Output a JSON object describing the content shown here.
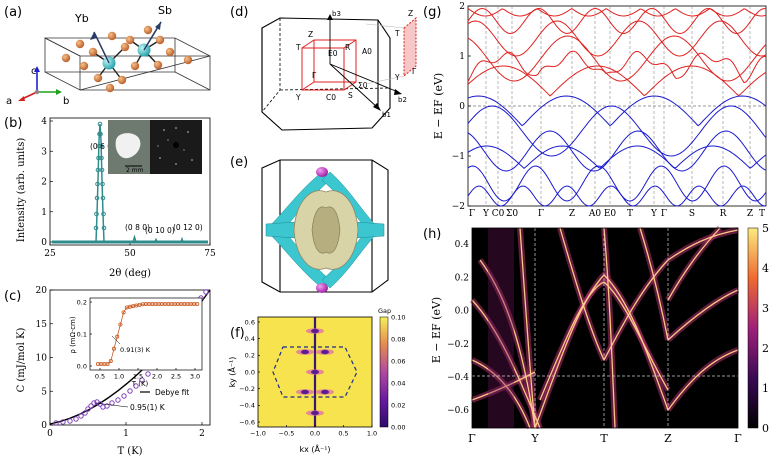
{
  "panels": {
    "a": {
      "label": "(a)",
      "atoms": [
        "Yb",
        "Sb"
      ],
      "axes": [
        "c",
        "a",
        "b"
      ]
    },
    "b": {
      "label": "(b)",
      "ylabel": "Intensity (arb. units)",
      "xlabel": "2θ (deg)",
      "yticks": [
        "0",
        "1",
        "2",
        "3",
        "4"
      ],
      "xticks": [
        "25",
        "50",
        "75"
      ],
      "peaks": [
        "(0 6 0)",
        "(0 8 0)",
        "(0 10 0)",
        "(0 12 0)"
      ],
      "scale_text": "2 mm"
    },
    "c": {
      "label": "(c)",
      "ylabel": "C (mJ/mol K)",
      "xlabel": "T (K)",
      "yticks": [
        "0",
        "5",
        "10",
        "15",
        "20"
      ],
      "xticks": [
        "0",
        "1",
        "2"
      ],
      "legend": "Debye fit",
      "tc_label": "0.95(1) K",
      "inset": {
        "ylabel": "ρ (mΩ·cm)",
        "xlabel": "T (K)",
        "yticks": [
          "0.0",
          "0.1",
          "0.2"
        ],
        "xticks": [
          "0.5",
          "1.0",
          "1.5",
          "2.0",
          "2.5",
          "3.0"
        ],
        "tc_label": "0.91(3) K"
      }
    },
    "d": {
      "label": "(d)",
      "points": [
        "Z",
        "T",
        "R",
        "A0",
        "E0",
        "Γ",
        "Y",
        "C0",
        "S",
        "Σ0"
      ],
      "axes": [
        "b3",
        "b2",
        "b1"
      ],
      "plane_points": [
        "Z",
        "T",
        "Y",
        "Γ"
      ]
    },
    "e": {
      "label": "(e)"
    },
    "f": {
      "label": "(f)",
      "ylabel": "ky (Å⁻¹)",
      "xlabel": "kx (Å⁻¹)",
      "xticks": [
        "−1.0",
        "−0.5",
        "0.0",
        "0.5",
        "1.0"
      ],
      "yticks": [
        "−0.6",
        "−0.4",
        "−0.2",
        "0.0",
        "0.2",
        "0.4",
        "0.6"
      ],
      "cbar_title": "Gap",
      "cbar_ticks": [
        "0.00",
        "0.02",
        "0.04",
        "0.06",
        "0.08",
        "0.10"
      ]
    },
    "g": {
      "label": "(g)",
      "ylabel": "E − EF (eV)",
      "yticks": [
        "−2",
        "−1",
        "0",
        "1",
        "2"
      ],
      "kpath": [
        "Γ",
        "Y",
        "C0",
        "Σ0",
        "Γ",
        "Z",
        "A0",
        "E0",
        "T",
        "Y",
        "Γ",
        "S",
        "R",
        "Z",
        "T"
      ]
    },
    "h": {
      "label": "(h)",
      "ylabel": "E − EF (eV)",
      "yticks": [
        "−0.6",
        "−0.4",
        "−0.2",
        "0.0",
        "0.2",
        "0.4"
      ],
      "kpath": [
        "Γ",
        "Y",
        "T",
        "Z",
        "Γ"
      ],
      "cbar_ticks": [
        "0",
        "1",
        "2",
        "3",
        "4",
        "5"
      ]
    }
  },
  "colors": {
    "teal": "#2f8c8c",
    "orange": "#d1733a",
    "red": "#e02020",
    "blue": "#1a1ad0",
    "navy": "#1e2a8c"
  }
}
